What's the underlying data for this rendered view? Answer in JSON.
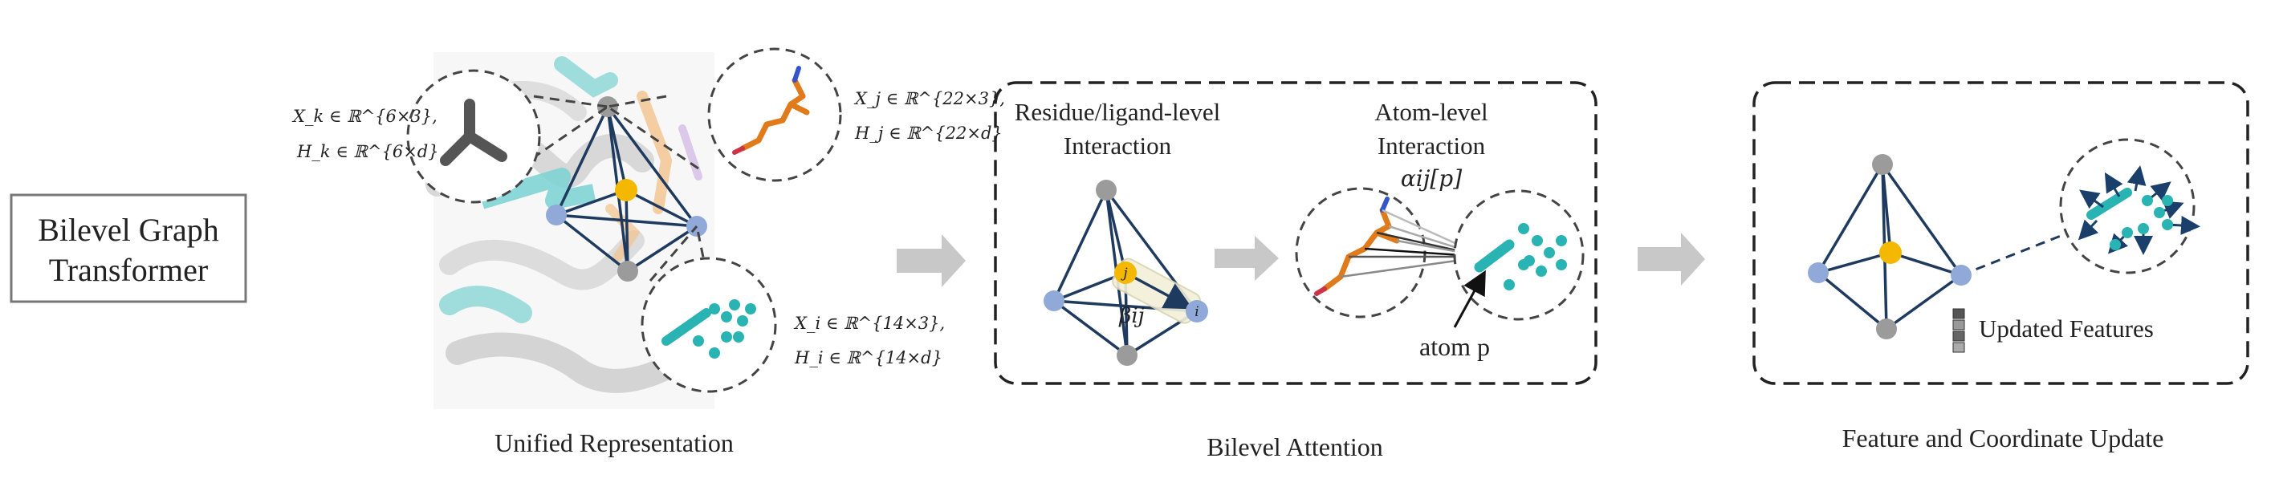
{
  "title_box": {
    "line1": "Bilevel Graph",
    "line2": "Transformer"
  },
  "panel1": {
    "caption": "Unified Representation",
    "math_k1": "X_k ∈ ℝ^{6×3},",
    "math_k2": "H_k ∈ ℝ^{6×d}",
    "math_j1": "X_j ∈ ℝ^{22×3},",
    "math_j2": "H_j ∈ ℝ^{22×d}",
    "math_i1": "X_i ∈ ℝ^{14×3},",
    "math_i2": "H_i ∈ ℝ^{14×d}"
  },
  "panel2": {
    "caption": "Bilevel Attention",
    "residue_line1": "Residue/ligand-level",
    "residue_line2": "Interaction",
    "atom_line1": "Atom-level",
    "atom_line2": "Interaction",
    "alpha_label": "αij[p]",
    "beta_label": "βij",
    "node_j": "j",
    "node_i": "i",
    "atom_p_label": "atom p"
  },
  "panel3": {
    "caption": "Feature and Coordinate Update",
    "updated_features": "Updated Features"
  },
  "colors": {
    "edge": "#1f3a5f",
    "node_gray": "#9b9b9b",
    "node_blue": "#90a9d8",
    "node_gold": "#f5b800",
    "teal": "#2ab3b3",
    "orange": "#e07a1a",
    "arrow": "#c8c8c8"
  }
}
